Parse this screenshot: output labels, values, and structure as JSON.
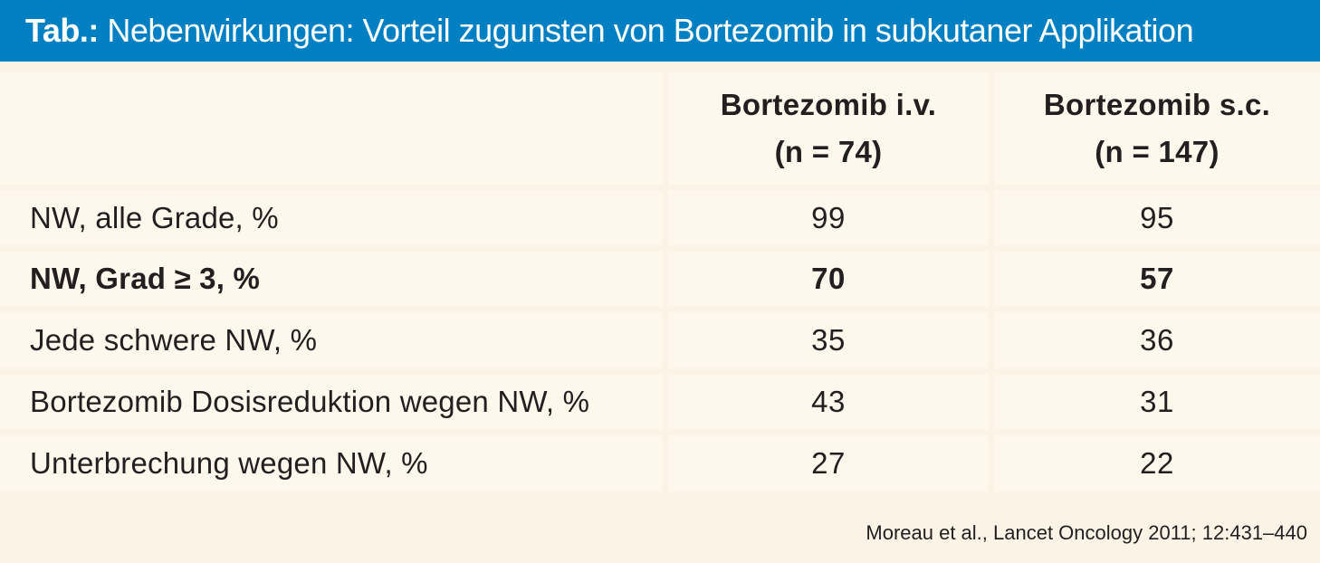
{
  "title": {
    "prefix": "Tab.:",
    "text": " Nebenwirkungen: Vorteil zugunsten von Bortezomib in subkutaner Applikation"
  },
  "columns": [
    {
      "line1": "Bortezomib i.v.",
      "line2": "(n = 74)"
    },
    {
      "line1": "Bortezomib s.c.",
      "line2": "(n = 147)"
    }
  ],
  "rows": [
    {
      "label": "NW, alle Grade, %",
      "iv": "99",
      "sc": "95",
      "bold": false
    },
    {
      "label": "NW, Grad ≥ 3, %",
      "iv": "70",
      "sc": "57",
      "bold": true
    },
    {
      "label": "Jede schwere NW, %",
      "iv": "35",
      "sc": "36",
      "bold": false
    },
    {
      "label": "Bortezomib Dosisreduktion wegen NW, %",
      "iv": "43",
      "sc": "31",
      "bold": false
    },
    {
      "label": "Unterbrechung wegen NW, %",
      "iv": "27",
      "sc": "22",
      "bold": false
    }
  ],
  "source": "Moreau et al., Lancet Oncology 2011; 12:431–440",
  "colors": {
    "title_bar": "#0080c3",
    "panel": "#fbf3e6",
    "cell": "#fef7ec",
    "text": "#231f20"
  }
}
